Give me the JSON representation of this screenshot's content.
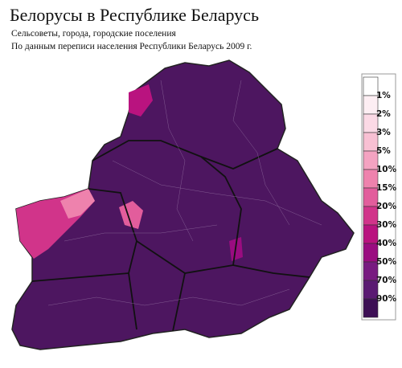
{
  "title": "Белорусы в Республике Беларусь",
  "subtitle": [
    "Сельсоветы, города, городские поселения",
    "По данным переписи населения Республики Беларусь 2009 г."
  ],
  "legend": {
    "labels": [
      "1%",
      "2%",
      "3%",
      "5%",
      "10%",
      "15%",
      "20%",
      "30%",
      "40%",
      "50%",
      "70%",
      "90%"
    ],
    "colors": [
      "#ffffff",
      "#fdeef3",
      "#fbd9e5",
      "#f8c0d3",
      "#f4a3c1",
      "#ee82ad",
      "#e25d9c",
      "#d1348a",
      "#b9137f",
      "#9a0c80",
      "#781a80",
      "#5a1a72",
      "#3d0f55"
    ]
  }
}
